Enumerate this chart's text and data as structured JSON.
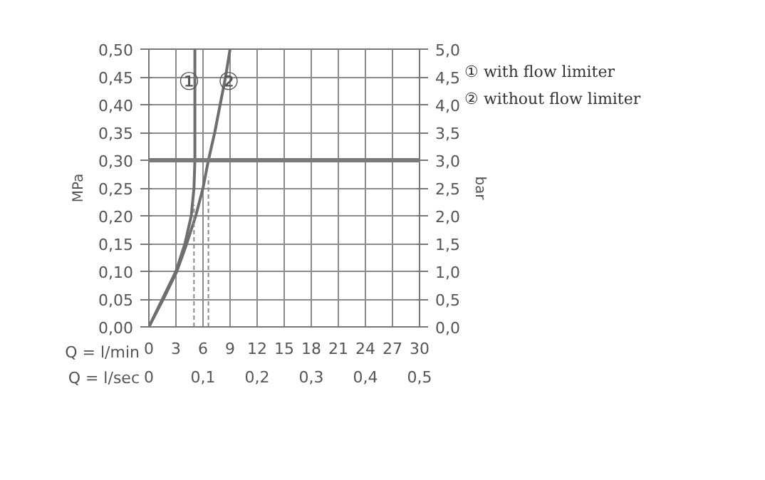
{
  "chart_data": {
    "type": "line",
    "xlabel": "Q = l/min",
    "x2label": "Q = l/sec",
    "ylabel": "MPa",
    "y2label": "bar",
    "xlim": [
      0,
      30
    ],
    "xticks": [
      0,
      3,
      6,
      9,
      12,
      15,
      18,
      21,
      24,
      27,
      30
    ],
    "x2lim": [
      0,
      0.5
    ],
    "x2ticks": [
      0,
      {
        "value": 0.1,
        "label": "0,1"
      },
      {
        "value": 0.2,
        "label": "0,2"
      },
      {
        "value": 0.3,
        "label": "0,3"
      },
      {
        "value": 0.4,
        "label": "0,4"
      },
      {
        "value": 0.5,
        "label": "0,5"
      }
    ],
    "ylim": [
      0,
      0.5
    ],
    "yticks": [
      {
        "value": 0,
        "label": "0,00"
      },
      {
        "value": 0.05,
        "label": "0,05"
      },
      {
        "value": 0.1,
        "label": "0,10"
      },
      {
        "value": 0.15,
        "label": "0,15"
      },
      {
        "value": 0.2,
        "label": "0,20"
      },
      {
        "value": 0.25,
        "label": "0,25"
      },
      {
        "value": 0.3,
        "label": "0,30"
      },
      {
        "value": 0.35,
        "label": "0,35"
      },
      {
        "value": 0.4,
        "label": "0,40"
      },
      {
        "value": 0.45,
        "label": "0,45"
      },
      {
        "value": 0.5,
        "label": "0,50"
      }
    ],
    "y2lim": [
      0,
      5
    ],
    "y2ticks": [
      {
        "value": 0,
        "label": "0,0"
      },
      {
        "value": 0.5,
        "label": "0,5"
      },
      {
        "value": 1,
        "label": "1,0"
      },
      {
        "value": 1.5,
        "label": "1,5"
      },
      {
        "value": 2,
        "label": "2,0"
      },
      {
        "value": 2.5,
        "label": "2,5"
      },
      {
        "value": 3,
        "label": "3,0"
      },
      {
        "value": 3.5,
        "label": "3,5"
      },
      {
        "value": 4,
        "label": "4,0"
      },
      {
        "value": 4.5,
        "label": "4,5"
      },
      {
        "value": 5,
        "label": "5,0"
      }
    ],
    "grid": true,
    "legend": "right",
    "marker": "none",
    "series": [
      {
        "name": "① with flow limiter",
        "color": "#6e6e6e",
        "x": [
          0,
          1.5,
          3,
          4,
          4.7,
          5.0,
          5.1,
          5.1
        ],
        "values": [
          0,
          0.05,
          0.1,
          0.15,
          0.2,
          0.25,
          0.3,
          0.5
        ]
      },
      {
        "name": "② without flow limiter",
        "color": "#6e6e6e",
        "x": [
          0,
          1.6,
          3.1,
          4.2,
          5.2,
          6.0,
          6.6,
          7.3,
          7.9,
          8.5,
          9.0
        ],
        "values": [
          0,
          0.05,
          0.1,
          0.15,
          0.2,
          0.25,
          0.3,
          0.35,
          0.4,
          0.45,
          0.5
        ]
      },
      {
        "color": "#8a8a8a",
        "line_style": "dashed",
        "x": [
          5.0,
          5.0
        ],
        "values": [
          0,
          0.22
        ]
      },
      {
        "color": "#8a8a8a",
        "line_style": "dashed",
        "x": [
          6.6,
          6.6
        ],
        "values": [
          0,
          0.27
        ]
      }
    ],
    "ref_lines": [
      {
        "axis": "y",
        "value": 0.3,
        "color": "#7a7a7a"
      }
    ],
    "annotations": [
      {
        "text": "①",
        "x": 5.1,
        "y": 0.44
      },
      {
        "text": "②",
        "x": 8.2,
        "y": 0.44
      }
    ]
  }
}
